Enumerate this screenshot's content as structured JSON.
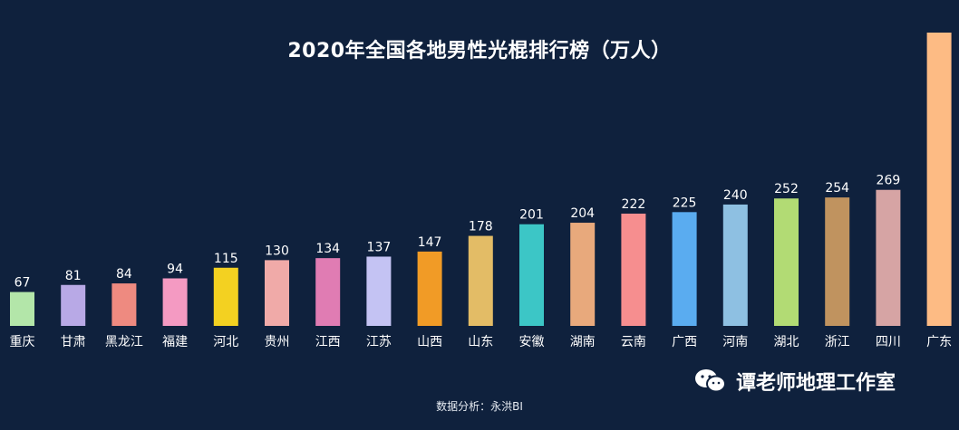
{
  "chart_data": {
    "type": "bar",
    "title": "2020年全国各地男性光棍排行榜（万人）",
    "categories": [
      "重庆",
      "甘肃",
      "黑龙江",
      "福建",
      "河北",
      "贵州",
      "江西",
      "江苏",
      "山西",
      "山东",
      "安徽",
      "湖南",
      "云南",
      "广西",
      "河南",
      "湖北",
      "浙江",
      "四川",
      "广东"
    ],
    "values": [
      67,
      81,
      84,
      94,
      115,
      130,
      134,
      137,
      147,
      178,
      201,
      204,
      222,
      225,
      240,
      252,
      254,
      269,
      580
    ],
    "value_labels": [
      "67",
      "81",
      "84",
      "94",
      "115",
      "130",
      "134",
      "137",
      "147",
      "178",
      "201",
      "204",
      "222",
      "225",
      "240",
      "252",
      "254",
      "269",
      ""
    ],
    "colors": [
      "#b3e6a9",
      "#b8a9e6",
      "#ee8a80",
      "#f49ac2",
      "#f3d121",
      "#f0aaa8",
      "#e07cb3",
      "#c4c3f3",
      "#f19b26",
      "#e3bc66",
      "#3cc6c6",
      "#e8a97c",
      "#f68e8f",
      "#5aacf0",
      "#8ec0e2",
      "#b2db74",
      "#c0935f",
      "#d6a4a4",
      "#fdbb84"
    ],
    "ylim": [
      0,
      580
    ],
    "grid": false,
    "legend": "none"
  },
  "footer": {
    "source": "数据分析：永洪BI",
    "watermark": "谭老师地理工作室",
    "watermark_icon": "wechat-icon"
  }
}
